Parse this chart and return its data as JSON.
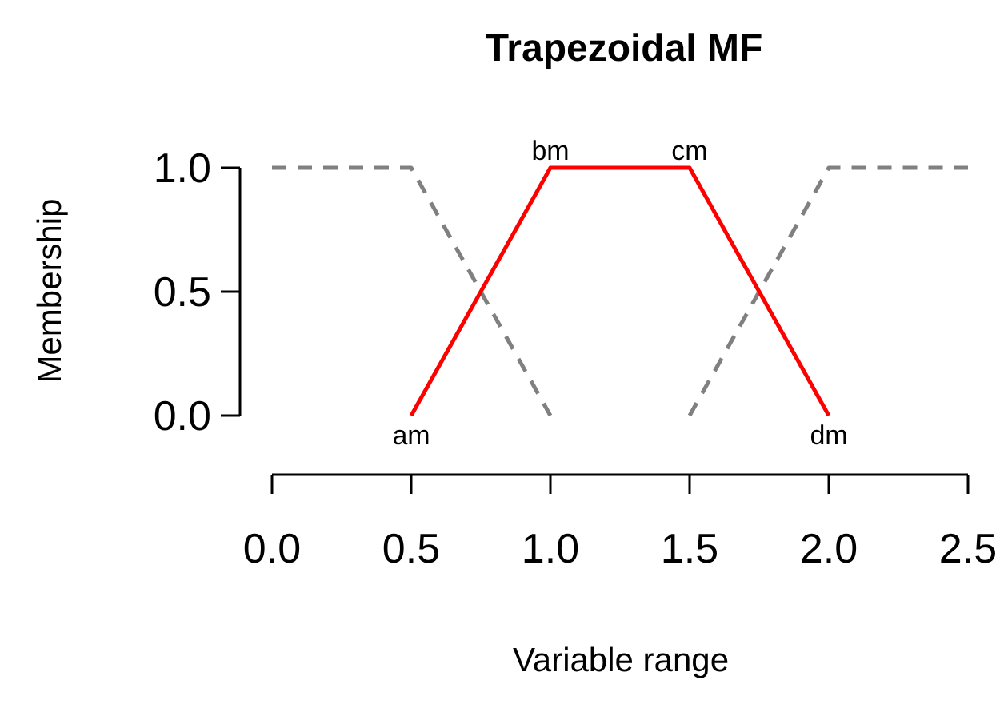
{
  "chart_data": {
    "type": "line",
    "title": "Trapezoidal MF",
    "xlabel": "Variable range",
    "ylabel": "Membership",
    "xlim": [
      0,
      2.5
    ],
    "ylim": [
      0,
      1
    ],
    "xticks": [
      {
        "value": 0,
        "label": "0.0"
      },
      {
        "value": 0.5,
        "label": "0.5"
      },
      {
        "value": 1,
        "label": "1.0"
      },
      {
        "value": 1.5,
        "label": "1.5"
      },
      {
        "value": 2,
        "label": "2.0"
      },
      {
        "value": 2.5,
        "label": "2.5"
      }
    ],
    "yticks": [
      {
        "value": 0,
        "label": "0.0"
      },
      {
        "value": 0.5,
        "label": "0.5"
      },
      {
        "value": 1,
        "label": "1.0"
      }
    ],
    "series": [
      {
        "color": "#808080",
        "line_style": "dashed",
        "x": [
          0,
          0.5,
          1
        ],
        "values": [
          1,
          1,
          0
        ]
      },
      {
        "color": "#808080",
        "line_style": "dashed",
        "x": [
          1.5,
          2,
          2.5
        ],
        "values": [
          0,
          1,
          1
        ]
      },
      {
        "color": "#ff0000",
        "line_style": "solid",
        "x": [
          0.5,
          1,
          1.5,
          2
        ],
        "values": [
          0,
          1,
          1,
          0
        ]
      }
    ],
    "annotations": [
      {
        "text": "am",
        "x": 0.5,
        "y": 0
      },
      {
        "text": "bm",
        "x": 1,
        "y": 1
      },
      {
        "text": "cm",
        "x": 1.5,
        "y": 1
      },
      {
        "text": "dm",
        "x": 2,
        "y": 0
      }
    ]
  }
}
